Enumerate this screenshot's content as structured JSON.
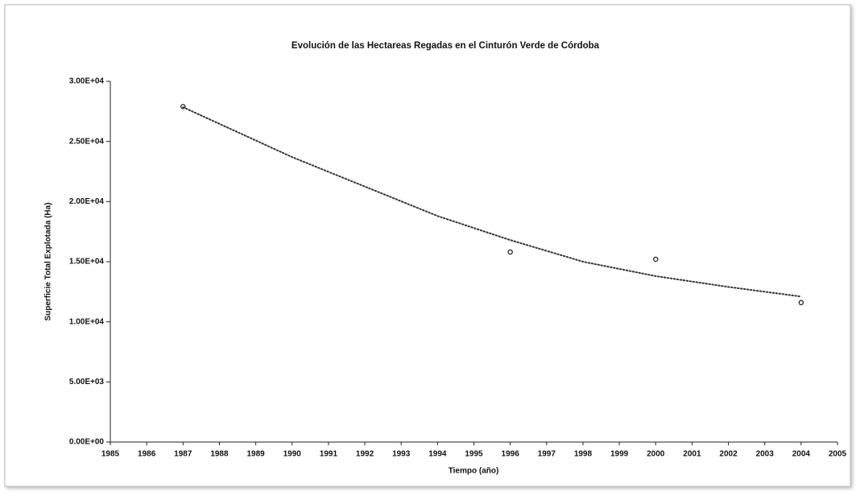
{
  "chart_data": {
    "type": "scatter",
    "title": "Evolución de las Hectareas Regadas en el Cinturón Verde de Córdoba",
    "x_label": "Tiempo (año)",
    "y_label": "Superficie Total Explotada (Ha)",
    "xlim": [
      1985,
      2005
    ],
    "xticks": [
      1985,
      1986,
      1987,
      1988,
      1989,
      1990,
      1991,
      1992,
      1993,
      1994,
      1995,
      1996,
      1997,
      1998,
      1999,
      2000,
      2001,
      2002,
      2003,
      2004,
      2005
    ],
    "ylim": [
      0,
      30000
    ],
    "yticks": [
      {
        "value": 0,
        "label": "0.00E+00"
      },
      {
        "value": 5000,
        "label": "5.00E+03"
      },
      {
        "value": 10000,
        "label": "1.00E+04"
      },
      {
        "value": 15000,
        "label": "1.50E+04"
      },
      {
        "value": 20000,
        "label": "2.00E+04"
      },
      {
        "value": 25000,
        "label": "2.50E+04"
      },
      {
        "value": 30000,
        "label": "3.00E+04"
      }
    ],
    "grid": false,
    "series": [
      {
        "kind": "markers",
        "color": "#222222",
        "x": [
          1987,
          1996,
          2000,
          2004
        ],
        "values": [
          27900,
          15800,
          15200,
          11600
        ]
      },
      {
        "kind": "dotted-line",
        "color": "#333333",
        "x": [
          1987,
          1990,
          1994,
          1996,
          1998,
          2000,
          2002,
          2004
        ],
        "values": [
          27850,
          23700,
          18800,
          16800,
          15000,
          13800,
          12900,
          12100
        ]
      }
    ]
  }
}
